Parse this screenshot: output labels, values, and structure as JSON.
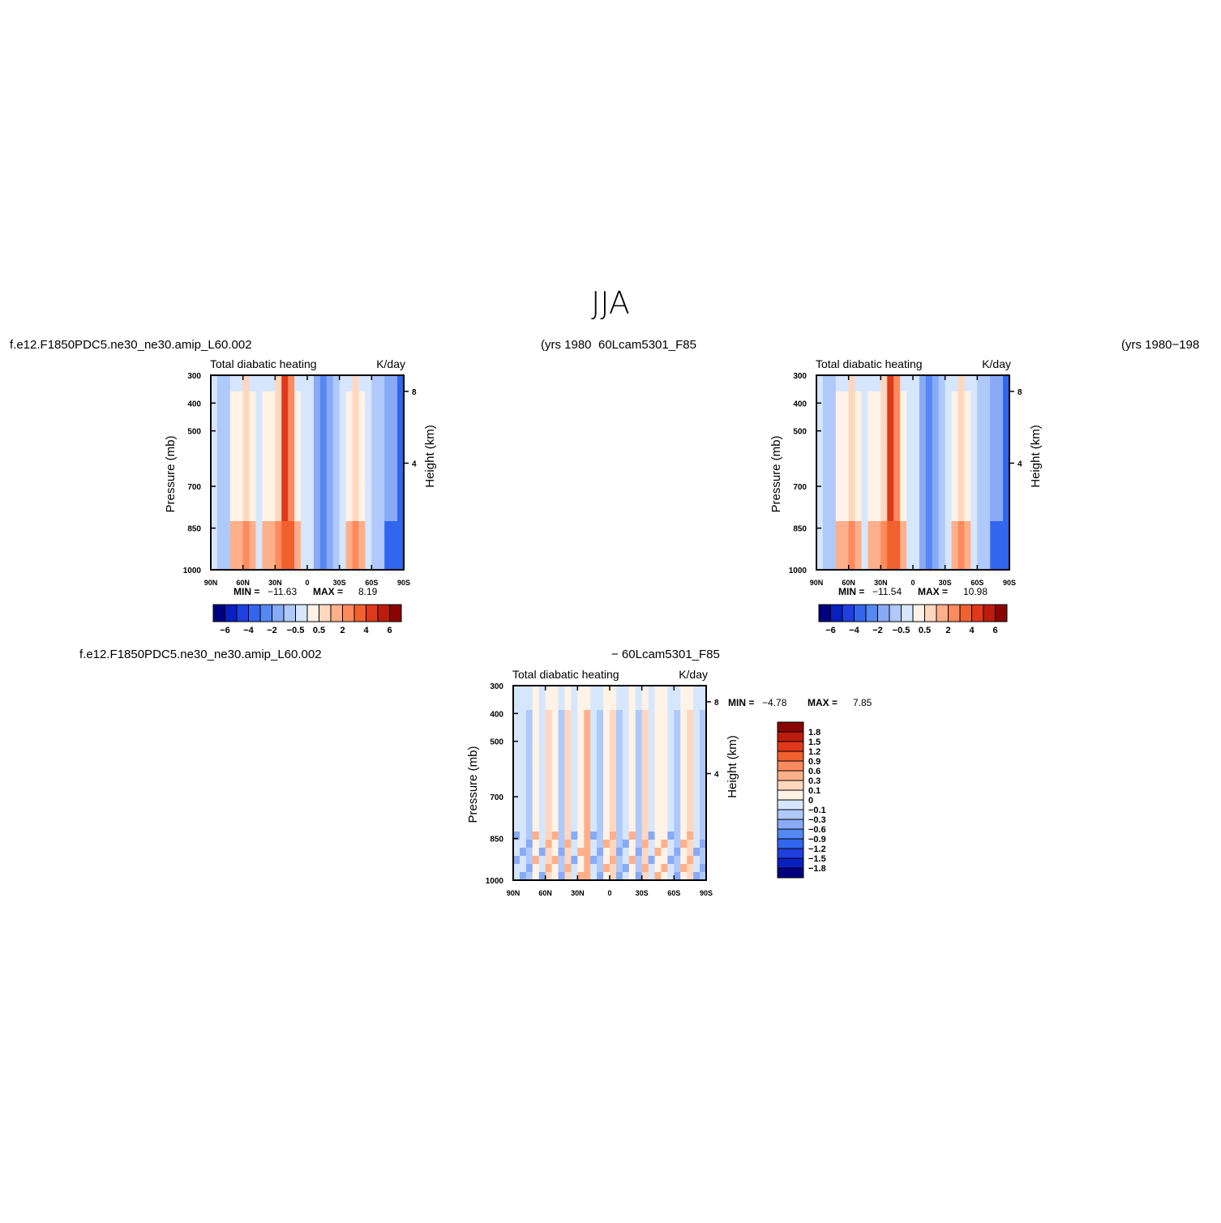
{
  "page_title": "JJA",
  "run_labels": {
    "top_left": "f.e12.F1850PDC5.ne30_ne30.amip_L60.002",
    "top_center_years": "(yrs  1980",
    "top_center_case": "60Lcam5301_F85",
    "top_right_years": "(yrs  1980−198",
    "bottom_left": "f.e12.F1850PDC5.ne30_ne30.amip_L60.002",
    "bottom_center": "−  60Lcam5301_F85"
  },
  "colors": {
    "scale": [
      "#00007f",
      "#0a1fbf",
      "#1f3fdf",
      "#3366ee",
      "#5588f2",
      "#88aaf7",
      "#b0c9fb",
      "#d6e6fd",
      "#fff2e6",
      "#ffd7bf",
      "#ffb08a",
      "#ff8a5e",
      "#f0612f",
      "#e0381a",
      "#bd1c0c",
      "#8a0404"
    ]
  },
  "chart_data": [
    {
      "type": "heatmap",
      "panel": "top-left",
      "title_left": "Total  diabatic  heating",
      "title_right": "K/day",
      "ylabel": "Pressure  (mb)",
      "ylabel_right": "Height  (km)",
      "y_ticks": [
        "300",
        "400",
        "500",
        "700",
        "850",
        "1000"
      ],
      "y_right_ticks": [
        "8",
        "4"
      ],
      "x_ticks": [
        "90N",
        "60N",
        "30N",
        "0",
        "30S",
        "60S",
        "90S"
      ],
      "min_label": "MIN  =",
      "min_value": "−11.63",
      "max_label": "MAX  =",
      "max_value": "8.19",
      "colorbar_labels": [
        "−6",
        "−4",
        "−2",
        "−0.5",
        "0.5",
        "2",
        "4",
        "6"
      ]
    },
    {
      "type": "heatmap",
      "panel": "top-right",
      "title_left": "Total  diabatic  heating",
      "title_right": "K/day",
      "ylabel": "Pressure  (mb)",
      "ylabel_right": "Height  (km)",
      "y_ticks": [
        "300",
        "400",
        "500",
        "700",
        "850",
        "1000"
      ],
      "y_right_ticks": [
        "8",
        "4"
      ],
      "x_ticks": [
        "90N",
        "60N",
        "30N",
        "0",
        "30S",
        "60S",
        "90S"
      ],
      "min_label": "MIN  =",
      "min_value": "−11.54",
      "max_label": "MAX  =",
      "max_value": "10.98",
      "colorbar_labels": [
        "−6",
        "−4",
        "−2",
        "−0.5",
        "0.5",
        "2",
        "4",
        "6"
      ]
    },
    {
      "type": "heatmap",
      "panel": "bottom-difference",
      "title_left": "Total  diabatic  heating",
      "title_right": "K/day",
      "ylabel": "Pressure  (mb)",
      "ylabel_right": "Height  (km)",
      "y_ticks": [
        "300",
        "400",
        "500",
        "700",
        "850",
        "1000"
      ],
      "y_right_ticks": [
        "8",
        "4"
      ],
      "x_ticks": [
        "90N",
        "60N",
        "30N",
        "0",
        "30S",
        "60S",
        "90S"
      ],
      "min_label": "MIN  =",
      "min_value": "−4.78",
      "max_label": "MAX  =",
      "max_value": "7.85",
      "colorbar_labels": [
        "1.8",
        "1.5",
        "1.2",
        "0.9",
        "0.6",
        "0.3",
        "0.1",
        "0",
        "−0.1",
        "−0.3",
        "−0.6",
        "−0.9",
        "−1.2",
        "−1.5",
        "−1.8"
      ]
    }
  ]
}
